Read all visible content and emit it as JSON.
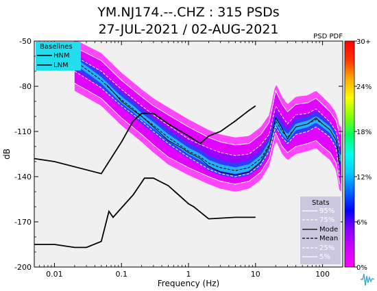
{
  "header": {
    "title_line1": "YM.NJ174.--.CHZ : 315 PSDs",
    "title_line2": "27-JUL-2021 / 02-AUG-2021"
  },
  "colorbar": {
    "label": "PSD PDF",
    "tick_labels": [
      "0%",
      "6%",
      "12%",
      "18%",
      "24%",
      "30+"
    ],
    "colors": [
      "#ff00ff",
      "#d000ff",
      "#8800ff",
      "#0000ff",
      "#0066ff",
      "#00ccff",
      "#00ffee",
      "#00ff66",
      "#88ff00",
      "#ffff00",
      "#ffaa00",
      "#ff3300",
      "#ff0000"
    ]
  },
  "baselines_legend": {
    "title": "Baselines",
    "items": [
      "HNM",
      "LNM"
    ],
    "background": "#22ddee"
  },
  "stats_legend": {
    "title": "Stats",
    "items": [
      "95%",
      "75%",
      "Mode",
      "Mean",
      "25%",
      "5%"
    ],
    "background": "#c8c4dc"
  },
  "chart_data": {
    "type": "heatmap",
    "xlabel": "Frequency (Hz)",
    "ylabel": "dB",
    "xscale": "log",
    "xlim": [
      0.005,
      200
    ],
    "ylim": [
      -200,
      -50
    ],
    "x_tick_labels": [
      "0.01",
      "0.1",
      "1",
      "10",
      "100"
    ],
    "x_ticks": [
      0.01,
      0.1,
      1,
      10,
      100
    ],
    "y_tick_labels": [
      "-50",
      "-80",
      "-110",
      "-140",
      "-170",
      "-200"
    ],
    "y_ticks": [
      -50,
      -80,
      -110,
      -140,
      -170,
      -200
    ],
    "series": [
      {
        "name": "HNM",
        "x": [
          0.005,
          0.01,
          0.05,
          0.1,
          0.15,
          0.2,
          0.3,
          0.5,
          1,
          1.5,
          2,
          3,
          5,
          8,
          10
        ],
        "values": [
          -128,
          -130,
          -138,
          -117,
          -103,
          -98,
          -98,
          -105,
          -113,
          -118,
          -113,
          -110,
          -103,
          -96,
          -93
        ]
      },
      {
        "name": "LNM",
        "x": [
          0.005,
          0.01,
          0.02,
          0.03,
          0.05,
          0.065,
          0.075,
          0.09,
          0.15,
          0.22,
          0.3,
          0.5,
          1,
          1.2,
          2,
          5,
          10
        ],
        "values": [
          -185,
          -185,
          -187,
          -187,
          -183,
          -163,
          -167,
          -163,
          -152,
          -141,
          -141,
          -146,
          -158,
          -160,
          -168,
          -167,
          -167
        ]
      },
      {
        "name": "Mode",
        "x": [
          0.06,
          0.08,
          0.1,
          0.15,
          0.2,
          0.3,
          0.5,
          0.8,
          1,
          1.5,
          2,
          3,
          5,
          8,
          12,
          16,
          20,
          25,
          30,
          40,
          60,
          80,
          100,
          130,
          160,
          180
        ],
        "values": [
          -79,
          -85,
          -90,
          -96,
          -100,
          -107,
          -116,
          -121,
          -124,
          -128,
          -133,
          -137,
          -139,
          -137,
          -130,
          -120,
          -101,
          -108,
          -115,
          -107,
          -105,
          -101,
          -105,
          -109,
          -116,
          -132
        ]
      },
      {
        "name": "Mean",
        "x": [
          0.02,
          0.05,
          0.08,
          0.1,
          0.15,
          0.2,
          0.3,
          0.5,
          0.8,
          1,
          1.5,
          2,
          3,
          5,
          8,
          12,
          16,
          20,
          25,
          30,
          40,
          60,
          80,
          100,
          130,
          160,
          180
        ],
        "values": [
          -63,
          -76,
          -85,
          -89,
          -95,
          -100,
          -106,
          -114,
          -120,
          -123,
          -127,
          -131,
          -134,
          -136,
          -134,
          -128,
          -119,
          -103,
          -110,
          -114,
          -107,
          -105,
          -102,
          -105,
          -109,
          -116,
          -128
        ]
      },
      {
        "name": "25%",
        "x": [
          0.02,
          0.05,
          0.1,
          0.2,
          0.3,
          0.5,
          1,
          2,
          3,
          5,
          8,
          12,
          16,
          20,
          25,
          30,
          40,
          60,
          80,
          100,
          130,
          160,
          180
        ],
        "values": [
          -70,
          -81,
          -93,
          -103,
          -110,
          -118,
          -127,
          -135,
          -138,
          -140,
          -138,
          -132,
          -123,
          -107,
          -114,
          -118,
          -112,
          -110,
          -107,
          -110,
          -114,
          -121,
          -140
        ]
      },
      {
        "name": "5%",
        "x": [
          0.02,
          0.05,
          0.1,
          0.2,
          0.3,
          0.5,
          1,
          2,
          3,
          5,
          8,
          12,
          16,
          20,
          25,
          30,
          40,
          60,
          80,
          100,
          130,
          160,
          180
        ],
        "values": [
          -78,
          -88,
          -101,
          -112,
          -119,
          -127,
          -134,
          -140,
          -143,
          -145,
          -143,
          -137,
          -128,
          -111,
          -120,
          -124,
          -120,
          -118,
          -116,
          -120,
          -124,
          -131,
          -145
        ]
      },
      {
        "name": "75%",
        "x": [
          0.02,
          0.05,
          0.1,
          0.2,
          0.3,
          0.5,
          1,
          2,
          3,
          5,
          8,
          12,
          16,
          20,
          25,
          30,
          40,
          60,
          80,
          100,
          130,
          160,
          180
        ],
        "values": [
          -60,
          -70,
          -82,
          -93,
          -99,
          -106,
          -115,
          -121,
          -124,
          -126,
          -125,
          -119,
          -112,
          -93,
          -100,
          -105,
          -99,
          -98,
          -95,
          -99,
          -104,
          -110,
          -120
        ]
      },
      {
        "name": "95%",
        "x": [
          0.02,
          0.05,
          0.1,
          0.2,
          0.3,
          0.5,
          1,
          2,
          3,
          5,
          8,
          12,
          16,
          20,
          25,
          30,
          40,
          60,
          80,
          100,
          130,
          160,
          180
        ],
        "values": [
          -54,
          -63,
          -76,
          -87,
          -93,
          -99,
          -107,
          -114,
          -117,
          -119,
          -118,
          -112,
          -104,
          -83,
          -92,
          -97,
          -92,
          -91,
          -88,
          -92,
          -97,
          -103,
          -112
        ]
      }
    ]
  }
}
